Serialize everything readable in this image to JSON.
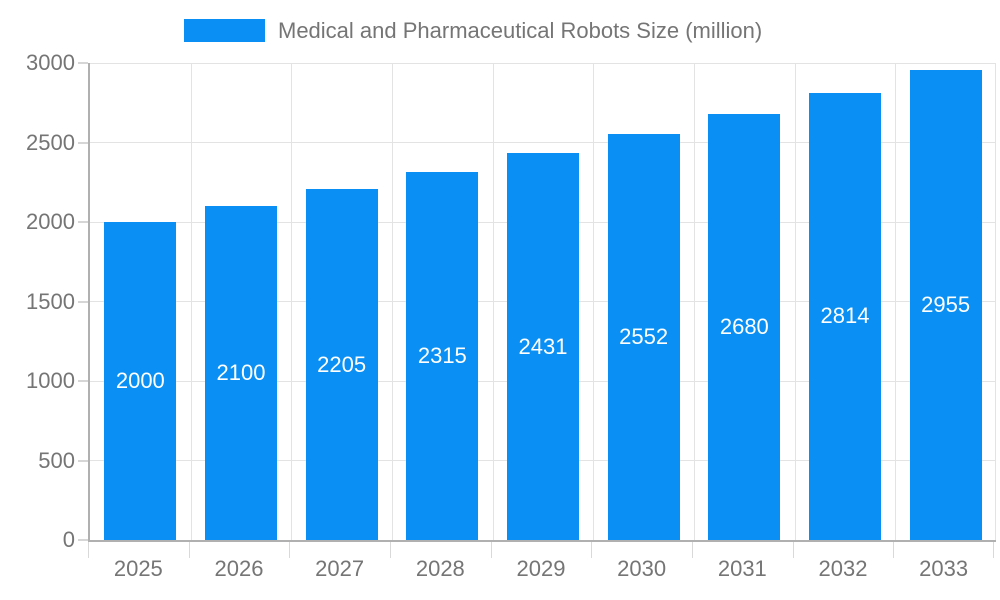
{
  "legend": {
    "label": "Medical and Pharmaceutical Robots Size (million)"
  },
  "colors": {
    "bar": "#0a90f5",
    "bar_label_text": "#ffffff",
    "axis_text": "#757575",
    "grid_line": "#e3e3e3",
    "axis_line": "#b0b0b0",
    "y_tick": "#d6d6d6",
    "x_tick": "#d9d9d9",
    "background": "#ffffff"
  },
  "chart_data": {
    "type": "bar",
    "title": "Medical and Pharmaceutical Robots Size (million)",
    "categories": [
      "2025",
      "2026",
      "2027",
      "2028",
      "2029",
      "2030",
      "2031",
      "2032",
      "2033"
    ],
    "values": [
      2000,
      2100,
      2205,
      2315,
      2431,
      2552,
      2680,
      2814,
      2955
    ],
    "value_labels": [
      "2000",
      "2100",
      "2205",
      "2315",
      "2431",
      "2552",
      "2680",
      "2814",
      "2955"
    ],
    "xlabel": "",
    "ylabel": "",
    "ylim": [
      0,
      3000
    ],
    "yticks": [
      0,
      500,
      1000,
      1500,
      2000,
      2500,
      3000
    ],
    "grid": "horizontal-and-vertical",
    "legend_position": "top-center",
    "value_label_position": "inside-center"
  }
}
